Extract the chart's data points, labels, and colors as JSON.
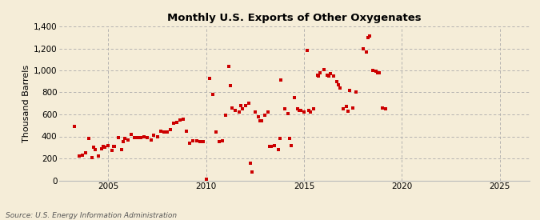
{
  "title": "Monthly U.S. Exports of Other Oxygenates",
  "ylabel": "Thousand Barrels",
  "source": "Source: U.S. Energy Information Administration",
  "xlim": [
    2002.5,
    2026.5
  ],
  "ylim": [
    0,
    1400
  ],
  "yticks": [
    0,
    200,
    400,
    600,
    800,
    1000,
    1200,
    1400
  ],
  "xticks": [
    2005,
    2010,
    2015,
    2020,
    2025
  ],
  "dot_color": "#cc0000",
  "background_color": "#f5edd8",
  "grid_color": "#aaaaaa",
  "scatter_size": 8,
  "data": [
    [
      2003.25,
      490
    ],
    [
      2003.5,
      220
    ],
    [
      2003.67,
      230
    ],
    [
      2003.83,
      250
    ],
    [
      2004.0,
      380
    ],
    [
      2004.17,
      210
    ],
    [
      2004.25,
      300
    ],
    [
      2004.33,
      280
    ],
    [
      2004.5,
      220
    ],
    [
      2004.67,
      290
    ],
    [
      2004.75,
      310
    ],
    [
      2004.83,
      300
    ],
    [
      2005.0,
      320
    ],
    [
      2005.17,
      270
    ],
    [
      2005.25,
      310
    ],
    [
      2005.33,
      310
    ],
    [
      2005.5,
      390
    ],
    [
      2005.67,
      280
    ],
    [
      2005.75,
      350
    ],
    [
      2005.83,
      380
    ],
    [
      2006.0,
      370
    ],
    [
      2006.17,
      420
    ],
    [
      2006.33,
      390
    ],
    [
      2006.5,
      390
    ],
    [
      2006.67,
      390
    ],
    [
      2006.83,
      400
    ],
    [
      2007.0,
      390
    ],
    [
      2007.17,
      370
    ],
    [
      2007.33,
      410
    ],
    [
      2007.5,
      400
    ],
    [
      2007.67,
      450
    ],
    [
      2007.83,
      440
    ],
    [
      2008.0,
      440
    ],
    [
      2008.17,
      460
    ],
    [
      2008.33,
      520
    ],
    [
      2008.5,
      530
    ],
    [
      2008.67,
      550
    ],
    [
      2008.83,
      560
    ],
    [
      2009.0,
      450
    ],
    [
      2009.17,
      340
    ],
    [
      2009.33,
      360
    ],
    [
      2009.5,
      360
    ],
    [
      2009.67,
      350
    ],
    [
      2009.83,
      350
    ],
    [
      2010.0,
      10
    ],
    [
      2010.17,
      930
    ],
    [
      2010.33,
      780
    ],
    [
      2010.5,
      440
    ],
    [
      2010.67,
      350
    ],
    [
      2010.83,
      360
    ],
    [
      2011.0,
      590
    ],
    [
      2011.17,
      1040
    ],
    [
      2011.25,
      860
    ],
    [
      2011.33,
      660
    ],
    [
      2011.5,
      640
    ],
    [
      2011.67,
      620
    ],
    [
      2011.75,
      680
    ],
    [
      2011.83,
      650
    ],
    [
      2012.0,
      680
    ],
    [
      2012.17,
      700
    ],
    [
      2012.25,
      160
    ],
    [
      2012.33,
      75
    ],
    [
      2012.5,
      620
    ],
    [
      2012.67,
      580
    ],
    [
      2012.75,
      540
    ],
    [
      2012.83,
      540
    ],
    [
      2013.0,
      590
    ],
    [
      2013.17,
      620
    ],
    [
      2013.25,
      310
    ],
    [
      2013.33,
      310
    ],
    [
      2013.5,
      320
    ],
    [
      2013.67,
      280
    ],
    [
      2013.75,
      380
    ],
    [
      2013.83,
      910
    ],
    [
      2014.0,
      650
    ],
    [
      2014.17,
      610
    ],
    [
      2014.25,
      380
    ],
    [
      2014.33,
      320
    ],
    [
      2014.5,
      750
    ],
    [
      2014.67,
      650
    ],
    [
      2014.75,
      640
    ],
    [
      2014.83,
      640
    ],
    [
      2015.0,
      620
    ],
    [
      2015.17,
      1180
    ],
    [
      2015.25,
      640
    ],
    [
      2015.33,
      620
    ],
    [
      2015.5,
      650
    ],
    [
      2015.67,
      960
    ],
    [
      2015.75,
      950
    ],
    [
      2015.83,
      980
    ],
    [
      2016.0,
      1010
    ],
    [
      2016.17,
      960
    ],
    [
      2016.25,
      950
    ],
    [
      2016.33,
      970
    ],
    [
      2016.5,
      950
    ],
    [
      2016.67,
      900
    ],
    [
      2016.75,
      870
    ],
    [
      2016.83,
      840
    ],
    [
      2017.0,
      650
    ],
    [
      2017.17,
      670
    ],
    [
      2017.25,
      630
    ],
    [
      2017.33,
      820
    ],
    [
      2017.5,
      660
    ],
    [
      2017.67,
      800
    ],
    [
      2018.0,
      1200
    ],
    [
      2018.17,
      1170
    ],
    [
      2018.25,
      1300
    ],
    [
      2018.33,
      1310
    ],
    [
      2018.5,
      1000
    ],
    [
      2018.67,
      990
    ],
    [
      2018.75,
      980
    ],
    [
      2018.83,
      980
    ],
    [
      2019.0,
      660
    ],
    [
      2019.17,
      650
    ]
  ]
}
